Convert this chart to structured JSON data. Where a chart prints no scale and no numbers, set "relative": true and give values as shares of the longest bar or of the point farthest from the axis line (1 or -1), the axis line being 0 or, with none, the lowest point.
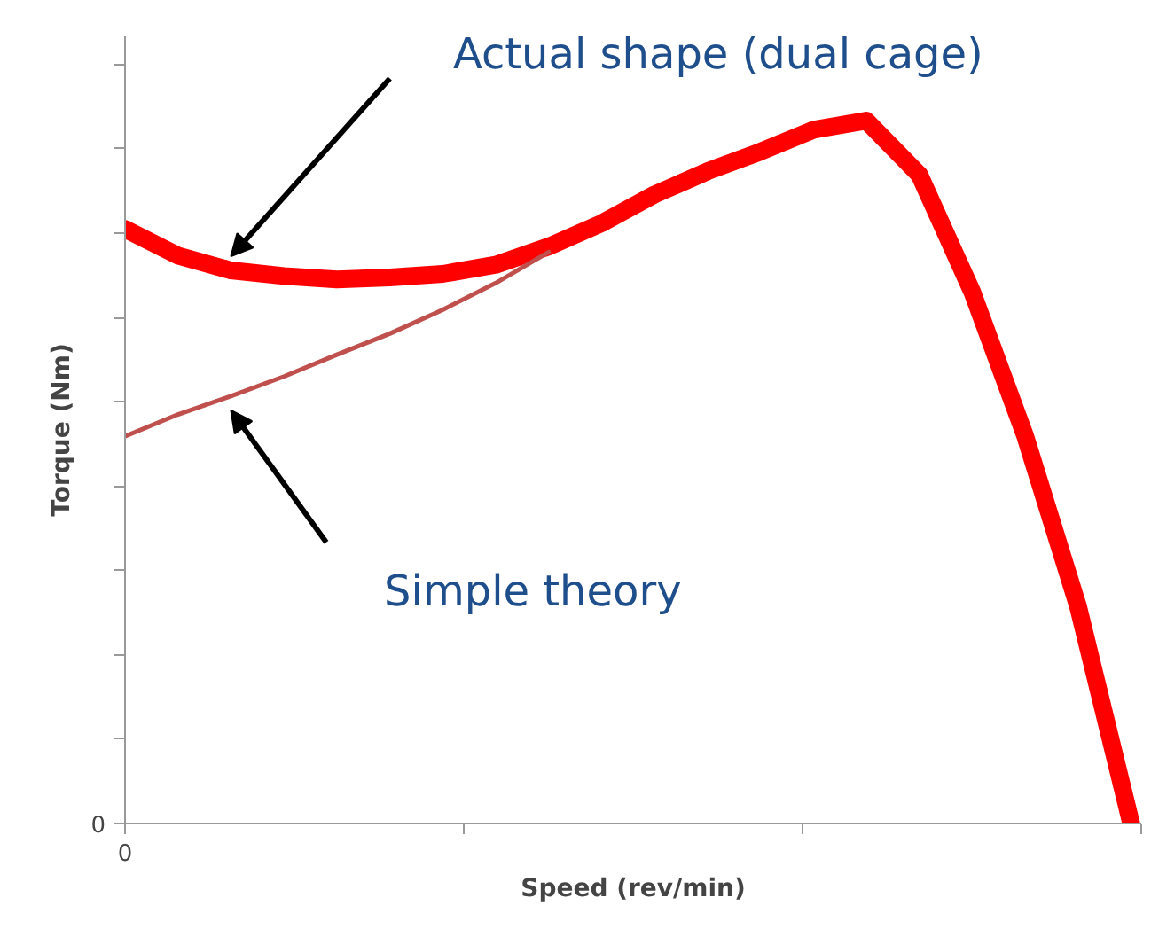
{
  "chart_data": {
    "type": "line",
    "relative": true,
    "xlabel": "Speed (rev/min)",
    "ylabel": "Torque (Nm)",
    "grid": false,
    "marker": "none",
    "line_style": "solid",
    "categories": [
      null,
      null,
      null,
      null,
      null,
      null,
      null,
      null,
      null,
      null,
      null,
      null,
      null,
      null,
      null,
      null,
      null,
      null,
      null,
      null
    ],
    "series": [
      {
        "color": "#ff0000",
        "values": [
          0.846,
          0.808,
          0.787,
          0.779,
          0.774,
          0.777,
          0.782,
          0.795,
          0.821,
          0.854,
          0.895,
          0.928,
          0.956,
          0.987,
          1.0,
          0.923,
          0.756,
          0.551,
          0.308,
          0
        ]
      },
      {
        "color": "#c0504d",
        "values": [
          0.551,
          0.582,
          0.608,
          0.636,
          0.667,
          0.697,
          0.731,
          0.769,
          0.813,
          null,
          null,
          null,
          null,
          null,
          null,
          null,
          null,
          null,
          null,
          null
        ]
      }
    ],
    "annotations": [
      "Actual shape (dual cage)",
      "Simple theory",
      "0",
      "0"
    ]
  }
}
